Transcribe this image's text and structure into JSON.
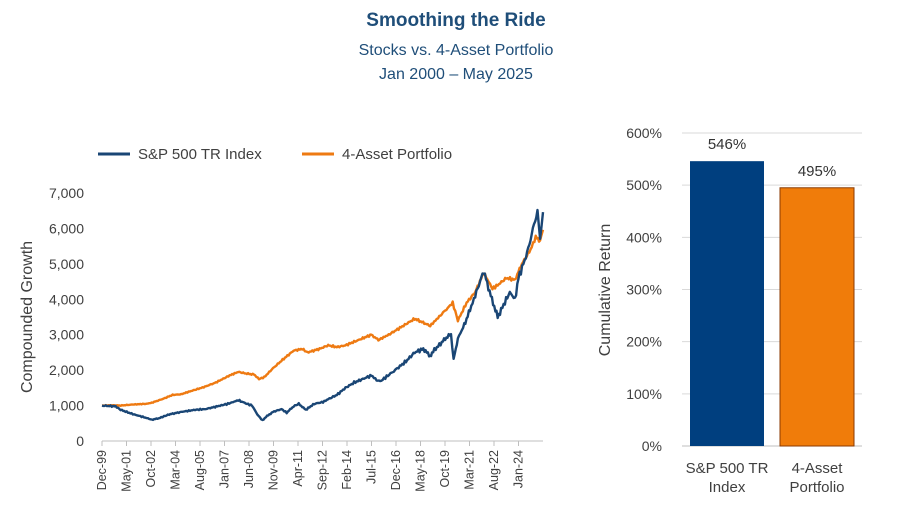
{
  "title": "Smoothing the Ride",
  "subtitle_line1": "Stocks vs. 4-Asset Portfolio",
  "subtitle_line2": "Jan 2000 – May 2025",
  "colors": {
    "sp500": "#1a4675",
    "portfolio": "#ee7a12",
    "bar_sp500": "#003f7f",
    "bar_portfolio": "#f07c0a",
    "bar_border": "#8b3a00",
    "axis": "#bfbfbf"
  },
  "chart_data": [
    {
      "type": "line",
      "ylabel": "Compounded Growth",
      "ylim": [
        0,
        7000
      ],
      "y_ticks": [
        "0",
        "1,000",
        "2,000",
        "3,000",
        "4,000",
        "5,000",
        "6,000",
        "7,000"
      ],
      "x_tick_labels": [
        "Dec-99",
        "May-01",
        "Oct-02",
        "Mar-04",
        "Aug-05",
        "Jan-07",
        "Jun-08",
        "Nov-09",
        "Apr-11",
        "Sep-12",
        "Feb-14",
        "Jul-15",
        "Dec-16",
        "May-18",
        "Oct-19",
        "Mar-21",
        "Aug-22",
        "Jan-24"
      ],
      "x_range": [
        1999.92,
        2025.42
      ],
      "legend_position": "top",
      "series": [
        {
          "name": "S&P 500 TR Index",
          "x": [
            1999.92,
            2000.7,
            2001.0,
            2001.7,
            2002.5,
            2002.8,
            2003.2,
            2003.8,
            2004.5,
            2005.3,
            2005.9,
            2006.6,
            2007.2,
            2007.8,
            2008.3,
            2008.6,
            2008.9,
            2009.2,
            2009.4,
            2009.8,
            2010.3,
            2010.6,
            2011.0,
            2011.3,
            2011.7,
            2012.2,
            2012.7,
            2013.0,
            2013.5,
            2014.0,
            2014.5,
            2015.0,
            2015.5,
            2015.8,
            2016.0,
            2016.6,
            2017.0,
            2017.5,
            2018.0,
            2018.5,
            2018.9,
            2019.0,
            2019.5,
            2019.9,
            2020.1,
            2020.25,
            2020.5,
            2020.8,
            2021.2,
            2021.5,
            2021.99,
            2022.4,
            2022.8,
            2023.0,
            2023.5,
            2023.8,
            2024.0,
            2024.5,
            2024.9,
            2025.1,
            2025.25,
            2025.42
          ],
          "values": [
            1000,
            980,
            880,
            760,
            650,
            600,
            640,
            750,
            820,
            880,
            900,
            980,
            1050,
            1150,
            1050,
            1000,
            750,
            580,
            680,
            820,
            900,
            800,
            980,
            1050,
            880,
            1050,
            1100,
            1180,
            1300,
            1500,
            1650,
            1750,
            1850,
            1720,
            1680,
            1900,
            2050,
            2250,
            2500,
            2600,
            2400,
            2500,
            2750,
            2950,
            3000,
            2300,
            2900,
            3200,
            3700,
            4100,
            4800,
            4100,
            3500,
            3700,
            4200,
            4000,
            4600,
            5300,
            6100,
            6500,
            5700,
            6460
          ]
        },
        {
          "name": "4-Asset Portfolio",
          "x": [
            1999.92,
            2000.5,
            2001.0,
            2001.7,
            2002.5,
            2002.8,
            2003.5,
            2004.0,
            2004.5,
            2005.0,
            2005.8,
            2006.5,
            2007.3,
            2007.8,
            2008.3,
            2008.7,
            2009.0,
            2009.3,
            2009.8,
            2010.5,
            2011.0,
            2011.5,
            2011.8,
            2012.5,
            2013.0,
            2013.5,
            2014.0,
            2014.5,
            2015.0,
            2015.5,
            2015.9,
            2016.5,
            2017.0,
            2017.5,
            2018.0,
            2018.9,
            2019.5,
            2019.9,
            2020.2,
            2020.5,
            2021.0,
            2021.5,
            2021.99,
            2022.5,
            2022.8,
            2023.3,
            2023.8,
            2024.2,
            2024.7,
            2025.0,
            2025.25,
            2025.42
          ],
          "values": [
            1000,
            1010,
            1000,
            1030,
            1050,
            1080,
            1200,
            1300,
            1320,
            1400,
            1520,
            1650,
            1850,
            1950,
            1900,
            1880,
            1750,
            1800,
            2050,
            2350,
            2550,
            2600,
            2500,
            2600,
            2700,
            2650,
            2700,
            2800,
            2900,
            3000,
            2850,
            3000,
            3150,
            3300,
            3450,
            3250,
            3550,
            3750,
            3900,
            3400,
            3900,
            4200,
            4750,
            4300,
            4400,
            4600,
            4550,
            5000,
            5400,
            5750,
            5650,
            5960
          ]
        }
      ]
    },
    {
      "type": "bar",
      "ylabel": "Cumulative Return",
      "ylim": [
        0,
        600
      ],
      "y_ticks": [
        "0%",
        "100%",
        "200%",
        "300%",
        "400%",
        "500%",
        "600%"
      ],
      "categories": [
        "S&P 500 TR Index",
        "4-Asset Portfolio"
      ],
      "category_lines": [
        [
          "S&P 500 TR",
          "Index"
        ],
        [
          "4-Asset",
          "Portfolio"
        ]
      ],
      "values": [
        546,
        495
      ],
      "data_labels": [
        "546%",
        "495%"
      ]
    }
  ]
}
